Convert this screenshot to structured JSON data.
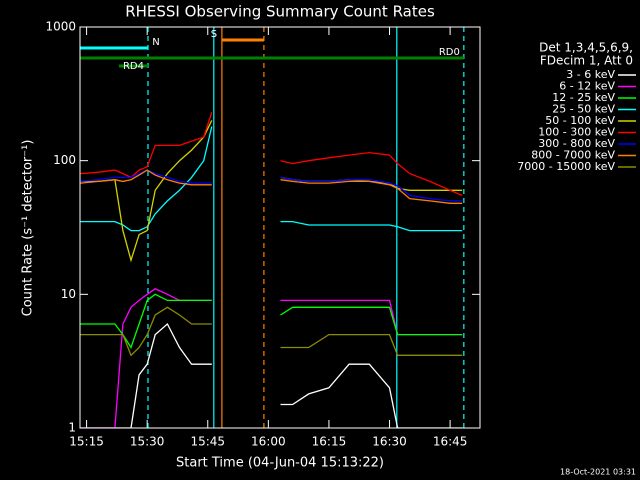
{
  "chart_data": {
    "type": "line",
    "title": "RHESSI Observing Summary Count Rates",
    "xlabel": "Start Time (04-Jun-04 15:13:22)",
    "ylabel": "Count Rate (s⁻¹ detector⁻¹)",
    "legend_title": [
      "Det 1,3,4,5,6,9,",
      "FDecim 1, Att 0"
    ],
    "footer": "18-Oct-2021 03:31",
    "log_y": true,
    "xlim": [
      913.37,
      1012.4
    ],
    "ylim": [
      1,
      1000
    ],
    "yticks": [
      1,
      10,
      100,
      1000
    ],
    "xticks": [
      {
        "value": 915,
        "label": "15:15"
      },
      {
        "value": 930,
        "label": "15:30"
      },
      {
        "value": 945,
        "label": "15:45"
      },
      {
        "value": 960,
        "label": "16:00"
      },
      {
        "value": 975,
        "label": "16:15"
      },
      {
        "value": 990,
        "label": "16:30"
      },
      {
        "value": 1005,
        "label": "16:45"
      }
    ],
    "x": [
      913.5,
      918,
      922,
      924,
      926,
      928,
      930,
      932,
      935,
      938,
      941,
      944,
      946,
      947,
      963,
      966,
      970,
      975,
      980,
      985,
      990,
      992,
      995,
      1000,
      1005,
      1008
    ],
    "series": [
      {
        "name": "3 - 6 keV",
        "color": "#ffffff",
        "values": [
          1,
          1,
          1,
          1,
          1,
          2.5,
          3,
          5,
          6,
          4,
          3,
          3,
          3,
          null,
          1.5,
          1.5,
          1.8,
          2,
          3,
          3,
          2,
          1,
          1,
          1,
          1,
          1
        ]
      },
      {
        "name": "6 - 12 keV",
        "color": "#ff00ff",
        "values": [
          1,
          1,
          1,
          6,
          8,
          9,
          10,
          11,
          10,
          9,
          9,
          9,
          9,
          null,
          9,
          9,
          9,
          9,
          9,
          9,
          9,
          5,
          5,
          5,
          5,
          5
        ]
      },
      {
        "name": "12 - 25 keV",
        "color": "#00ff00",
        "values": [
          6,
          6,
          6,
          5,
          4,
          6,
          9,
          10,
          9,
          9,
          9,
          9,
          9,
          null,
          7,
          8,
          8,
          8,
          8,
          8,
          8,
          5,
          5,
          5,
          5,
          5
        ]
      },
      {
        "name": "25 - 50 keV",
        "color": "#00ffff",
        "values": [
          35,
          35,
          35,
          33,
          30,
          30,
          32,
          40,
          50,
          60,
          75,
          100,
          180,
          null,
          35,
          35,
          33,
          33,
          33,
          33,
          33,
          32,
          30,
          30,
          30,
          30
        ]
      },
      {
        "name": "50 - 100 keV",
        "color": "#d2d200",
        "values": [
          70,
          70,
          72,
          30,
          18,
          28,
          30,
          60,
          80,
          100,
          120,
          150,
          200,
          null,
          75,
          72,
          70,
          70,
          72,
          70,
          68,
          62,
          60,
          60,
          60,
          60
        ]
      },
      {
        "name": "100 - 300 keV",
        "color": "#ff0000",
        "values": [
          80,
          82,
          85,
          80,
          75,
          85,
          90,
          130,
          130,
          130,
          140,
          150,
          230,
          null,
          100,
          95,
          100,
          105,
          110,
          115,
          110,
          95,
          80,
          70,
          60,
          55
        ]
      },
      {
        "name": "300 - 800 keV",
        "color": "#0000ff",
        "values": [
          70,
          72,
          75,
          75,
          75,
          80,
          85,
          80,
          75,
          70,
          68,
          68,
          68,
          null,
          75,
          72,
          70,
          70,
          72,
          72,
          68,
          65,
          55,
          52,
          50,
          50
        ]
      },
      {
        "name": "800 - 7000 keV",
        "color": "#ff8000",
        "values": [
          68,
          70,
          72,
          70,
          72,
          78,
          85,
          78,
          72,
          68,
          66,
          66,
          66,
          null,
          72,
          70,
          68,
          68,
          70,
          70,
          66,
          62,
          52,
          50,
          48,
          48
        ]
      },
      {
        "name": "7000 - 15000 keV",
        "color": "#8c8c00",
        "values": [
          5,
          5,
          5,
          5,
          3.5,
          4,
          5,
          7,
          8,
          7,
          6,
          6,
          6,
          null,
          4,
          4,
          4,
          5,
          5,
          5,
          5,
          3.5,
          3.5,
          3.5,
          3.5,
          3.5
        ]
      }
    ],
    "markers": [
      {
        "x": 930.2,
        "color": "#00ffff",
        "dashed": true
      },
      {
        "x": 946.5,
        "color": "#00ffff",
        "dashed": false
      },
      {
        "x": 948.5,
        "color": "#ff8000",
        "dashed": false
      },
      {
        "x": 958.9,
        "color": "#ff8000",
        "dashed": true
      },
      {
        "x": 991.8,
        "color": "#00ffff",
        "dashed": false
      },
      {
        "x": 1008.4,
        "color": "#00ffff",
        "dashed": true
      }
    ],
    "flags": [
      {
        "name": "S",
        "color": "#ff8000",
        "start": 948.5,
        "end": 958.9
      },
      {
        "name": "N",
        "color": "#00ffff",
        "start": 913.37,
        "end": 930.2
      },
      {
        "name": "RD0",
        "color": "#008000",
        "start": 913.37,
        "end": 1008.4
      },
      {
        "name": "RD4",
        "color": "#008000",
        "start": 923,
        "end": 930.2
      }
    ]
  }
}
